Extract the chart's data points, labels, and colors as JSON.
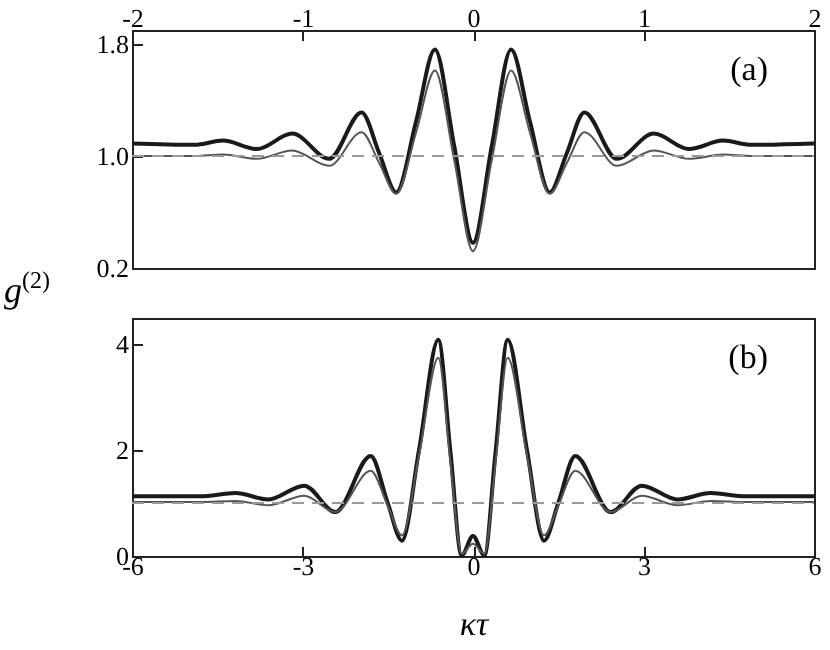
{
  "chart_data": [
    {
      "type": "line",
      "ylabel": "g$^{(2)}$",
      "annotations": [
        "(a)"
      ],
      "xlim": [
        -6,
        6
      ],
      "ylim": [
        0.2,
        1.9
      ],
      "yticks": [
        0.2,
        {
          "value": 1.0,
          "label": "1.0"
        },
        1.8
      ],
      "x2lim": [
        -2,
        2
      ],
      "x2ticks": [
        -2,
        -1,
        0,
        1,
        2
      ],
      "tick_labels": "y",
      "grid": false,
      "line_style": "solid",
      "marker": "none",
      "ref_lines": [
        {
          "axis": "y",
          "value": 1.0,
          "color": "#999999",
          "line_style": "dashed"
        }
      ],
      "series": [
        {
          "color": "#1a1a1a",
          "x": [
            -6,
            -4.9,
            -4.4,
            -3.8,
            -3.18,
            -2.53,
            -1.96,
            -1.65,
            -1.35,
            -1.0,
            -0.67,
            -0.33,
            0,
            0.33,
            0.67,
            1.0,
            1.35,
            1.65,
            1.96,
            2.53,
            3.18,
            3.8,
            4.4,
            4.9,
            6
          ],
          "values": [
            1.09,
            1.08,
            1.11,
            1.05,
            1.16,
            0.98,
            1.31,
            1.02,
            0.74,
            1.25,
            1.76,
            1.07,
            0.38,
            1.07,
            1.76,
            1.25,
            0.74,
            1.02,
            1.31,
            0.98,
            1.16,
            1.05,
            1.11,
            1.08,
            1.09
          ]
        },
        {
          "color": "#555555",
          "x": [
            -6,
            -4.9,
            -4.4,
            -3.8,
            -3.18,
            -2.53,
            -1.96,
            -1.65,
            -1.35,
            -1.0,
            -0.67,
            -0.33,
            0,
            0.33,
            0.67,
            1.0,
            1.35,
            1.65,
            1.96,
            2.53,
            3.18,
            3.8,
            4.4,
            4.9,
            6
          ],
          "values": [
            1.0,
            1.0,
            1.01,
            0.98,
            1.04,
            0.93,
            1.17,
            0.95,
            0.73,
            1.17,
            1.61,
            0.97,
            0.32,
            0.97,
            1.61,
            1.17,
            0.73,
            0.95,
            1.17,
            0.93,
            1.04,
            0.98,
            1.01,
            1.0,
            1.0
          ]
        }
      ]
    },
    {
      "type": "line",
      "xlabel": "κτ",
      "annotations": [
        "(b)"
      ],
      "xlim": [
        -6,
        6
      ],
      "xticks": [
        -6,
        -3,
        0,
        3,
        6
      ],
      "ylim": [
        0,
        4.5
      ],
      "yticks": [
        0,
        2,
        4
      ],
      "grid": false,
      "line_style": "solid",
      "marker": "none",
      "ref_lines": [
        {
          "axis": "y",
          "value": 1.0,
          "color": "#999999",
          "line_style": "dashed"
        }
      ],
      "series": [
        {
          "color": "#1a1a1a",
          "x": [
            -6,
            -4.8,
            -4.18,
            -3.6,
            -2.97,
            -2.42,
            -1.8,
            -1.5,
            -1.25,
            -0.95,
            -0.61,
            -0.4,
            -0.2,
            0,
            0.2,
            0.4,
            0.61,
            0.95,
            1.25,
            1.5,
            1.8,
            2.42,
            2.97,
            3.6,
            4.18,
            4.8,
            6
          ],
          "values": [
            1.13,
            1.13,
            1.19,
            1.07,
            1.33,
            0.83,
            1.89,
            1.0,
            0.29,
            2.0,
            4.09,
            2.0,
            0.01,
            0.38,
            0.01,
            2.0,
            4.09,
            2.0,
            0.29,
            1.0,
            1.89,
            0.83,
            1.33,
            1.07,
            1.19,
            1.13,
            1.13
          ]
        },
        {
          "color": "#555555",
          "x": [
            -6,
            -4.8,
            -4.18,
            -3.6,
            -2.97,
            -2.42,
            -1.8,
            -1.5,
            -1.25,
            -0.95,
            -0.61,
            -0.4,
            -0.2,
            0,
            0.2,
            0.4,
            0.61,
            0.95,
            1.25,
            1.5,
            1.8,
            2.42,
            2.97,
            3.6,
            4.18,
            4.8,
            6
          ],
          "values": [
            1.02,
            1.02,
            1.04,
            0.96,
            1.14,
            0.83,
            1.61,
            0.95,
            0.39,
            1.9,
            3.75,
            1.8,
            0.04,
            0.23,
            0.04,
            1.8,
            3.75,
            1.9,
            0.39,
            0.95,
            1.61,
            0.83,
            1.14,
            0.96,
            1.04,
            1.02,
            1.02
          ]
        }
      ]
    }
  ]
}
